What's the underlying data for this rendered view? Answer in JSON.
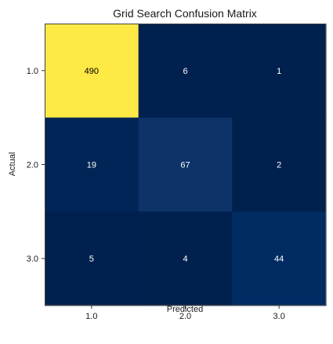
{
  "chart_data": {
    "type": "heatmap",
    "title": "Grid Search Confusion Matrix",
    "xlabel": "Predicted",
    "ylabel": "Actual",
    "x_categories": [
      "1.0",
      "2.0",
      "3.0"
    ],
    "y_categories": [
      "1.0",
      "2.0",
      "3.0"
    ],
    "values": [
      [
        490,
        6,
        1
      ],
      [
        19,
        67,
        2
      ],
      [
        5,
        4,
        44
      ]
    ],
    "colormap": "cividis",
    "color_range": [
      0,
      490
    ],
    "grid": false,
    "colors": {
      "low": "#00204c",
      "high": "#ffe945",
      "dark_text": "#000000",
      "light_text": "#ffffff"
    }
  }
}
